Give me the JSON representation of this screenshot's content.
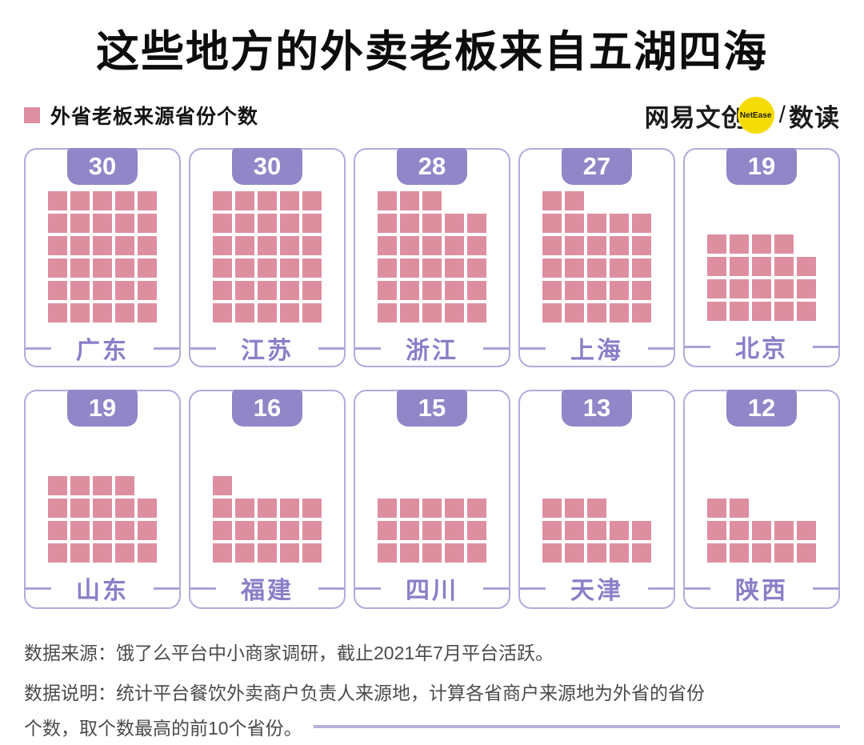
{
  "title": "这些地方的外卖老板来自五湖四海",
  "legend": {
    "label": "外省老板来源省份个数",
    "swatch_color": "#dd8fa0"
  },
  "brand": {
    "name": "网易文创",
    "badge": "NetEase",
    "separator": "/",
    "product": "数读",
    "badge_color": "#f6dc07"
  },
  "chart_data": {
    "type": "waffle",
    "title": "这些地方的外卖老板来自五湖四海",
    "series_label": "外省老板来源省份个数",
    "columns_per_row": 5,
    "fill_order": "bottom-up, remainder squares top-left-aligned",
    "categories": [
      "广东",
      "江苏",
      "浙江",
      "上海",
      "北京",
      "山东",
      "福建",
      "四川",
      "天津",
      "陕西"
    ],
    "values": [
      30,
      30,
      28,
      27,
      19,
      19,
      16,
      15,
      13,
      12
    ],
    "provinces": [
      {
        "name": "广东",
        "value": 30
      },
      {
        "name": "江苏",
        "value": 30
      },
      {
        "name": "浙江",
        "value": 28
      },
      {
        "name": "上海",
        "value": 27
      },
      {
        "name": "北京",
        "value": 19
      },
      {
        "name": "山东",
        "value": 19
      },
      {
        "name": "福建",
        "value": 16
      },
      {
        "name": "四川",
        "value": 15
      },
      {
        "name": "天津",
        "value": 13
      },
      {
        "name": "陕西",
        "value": 12
      }
    ]
  },
  "footer": {
    "source": "数据来源：饿了么平台中小商家调研，截止2021年7月平台活跃。",
    "note_line1": "数据说明：统计平台餐饮外卖商户负责人来源地，计算各省商户来源地为外省的省份",
    "note_line2": "个数，取个数最高的前10个省份。"
  },
  "colors": {
    "waffle_square": "#dd8fa0",
    "badge_bg": "#9086c8",
    "badge_text": "#ffffff",
    "card_border": "#b3abdc",
    "province_text": "#8a7ec8",
    "footer_text": "#4b4b4b",
    "footer_divider": "#b7b0d8",
    "title_text": "#0d0d0d"
  }
}
